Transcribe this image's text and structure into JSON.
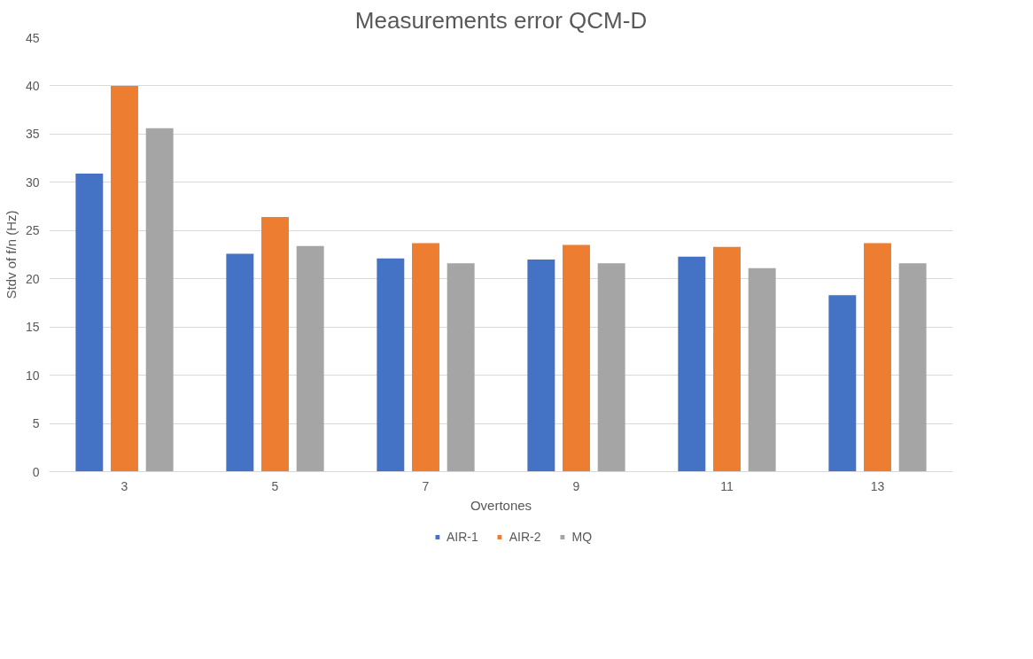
{
  "chart_data": {
    "type": "bar",
    "title": "Measurements error QCM-D",
    "xlabel": "Overtones",
    "ylabel": "Stdv of f/n (Hz)",
    "categories": [
      "3",
      "5",
      "7",
      "9",
      "11",
      "13"
    ],
    "series": [
      {
        "name": "AIR-1",
        "color": "#4472c4",
        "values": [
          30.9,
          22.6,
          22.1,
          22.0,
          22.3,
          18.3
        ]
      },
      {
        "name": "AIR-2",
        "color": "#ed7d31",
        "values": [
          40.0,
          26.4,
          23.7,
          23.5,
          23.3,
          23.7
        ]
      },
      {
        "name": "MQ",
        "color": "#a5a5a5",
        "values": [
          35.6,
          23.4,
          21.6,
          21.6,
          21.1,
          21.6
        ]
      }
    ],
    "ylim": [
      0,
      45
    ],
    "yticks": [
      0,
      5,
      10,
      15,
      20,
      25,
      30,
      35,
      40,
      45
    ],
    "grid": "y",
    "legend": "bottom"
  }
}
